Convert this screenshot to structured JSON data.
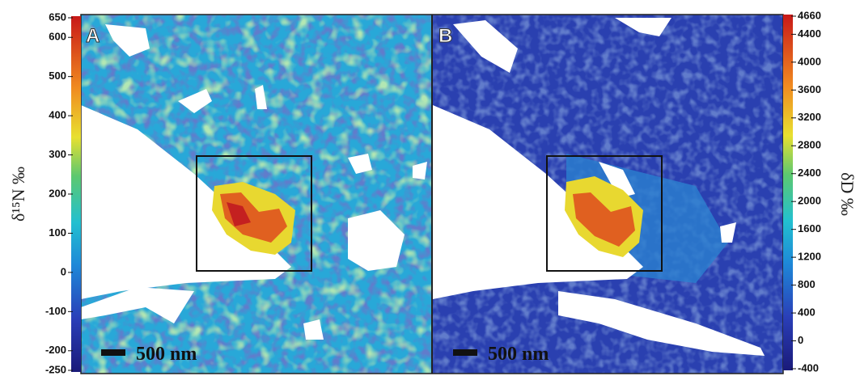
{
  "left_colorbar": {
    "label": "δ¹⁵N ‰",
    "lim": [
      -250,
      650
    ],
    "ticks": [
      650,
      600,
      500,
      400,
      300,
      200,
      100,
      0,
      -100,
      -200,
      -250
    ]
  },
  "right_colorbar": {
    "label": "δD ‰",
    "lim": [
      -400,
      4660
    ],
    "ticks": [
      4660,
      4400,
      4000,
      3600,
      3200,
      2800,
      2400,
      2000,
      1600,
      1200,
      800,
      400,
      0,
      -400
    ]
  },
  "panels": [
    {
      "label": "A",
      "scale_bar": "500 nm"
    },
    {
      "label": "B",
      "scale_bar": "500 nm"
    }
  ]
}
